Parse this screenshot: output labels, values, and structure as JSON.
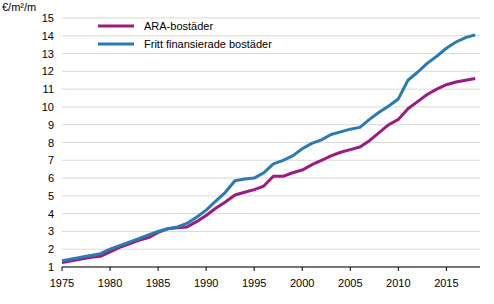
{
  "chart_data": {
    "type": "line",
    "y_label": "€/m²/m",
    "x": [
      1975,
      1976,
      1977,
      1978,
      1979,
      1980,
      1981,
      1982,
      1983,
      1984,
      1985,
      1986,
      1987,
      1988,
      1989,
      1990,
      1991,
      1992,
      1993,
      1994,
      1995,
      1996,
      1997,
      1998,
      1999,
      2000,
      2001,
      2002,
      2003,
      2004,
      2005,
      2006,
      2007,
      2008,
      2009,
      2010,
      2011,
      2012,
      2013,
      2014,
      2015,
      2016,
      2017,
      2018
    ],
    "series": [
      {
        "name": "ARA-bostäder",
        "color": "#9c1b80",
        "values": [
          1.25,
          1.35,
          1.45,
          1.55,
          1.6,
          1.85,
          2.1,
          2.3,
          2.5,
          2.65,
          2.95,
          3.15,
          3.2,
          3.25,
          3.55,
          3.9,
          4.3,
          4.65,
          5.05,
          5.2,
          5.35,
          5.55,
          6.1,
          6.1,
          6.3,
          6.45,
          6.75,
          7.0,
          7.25,
          7.45,
          7.6,
          7.75,
          8.1,
          8.55,
          9.0,
          9.3,
          9.9,
          10.3,
          10.7,
          11.0,
          11.25,
          11.4,
          11.5,
          11.6
        ]
      },
      {
        "name": "Fritt finansierade bostäder",
        "color": "#2b7bb3",
        "values": [
          1.35,
          1.45,
          1.55,
          1.65,
          1.75,
          2.0,
          2.2,
          2.4,
          2.6,
          2.8,
          3.0,
          3.15,
          3.25,
          3.45,
          3.8,
          4.2,
          4.7,
          5.2,
          5.85,
          5.95,
          6.0,
          6.3,
          6.8,
          7.0,
          7.25,
          7.65,
          7.95,
          8.15,
          8.45,
          8.6,
          8.75,
          8.85,
          9.3,
          9.7,
          10.05,
          10.45,
          11.5,
          11.95,
          12.45,
          12.85,
          13.3,
          13.65,
          13.9,
          14.05
        ]
      }
    ],
    "xlim": [
      1975,
      2018.5
    ],
    "xticks": [
      1975,
      1980,
      1985,
      1990,
      1995,
      2000,
      2005,
      2010,
      2015
    ],
    "ylim": [
      1,
      15
    ],
    "yticks": [
      1,
      2,
      3,
      4,
      5,
      6,
      7,
      8,
      9,
      10,
      11,
      12,
      13,
      14,
      15
    ],
    "grid": true,
    "legend": "top-left"
  }
}
